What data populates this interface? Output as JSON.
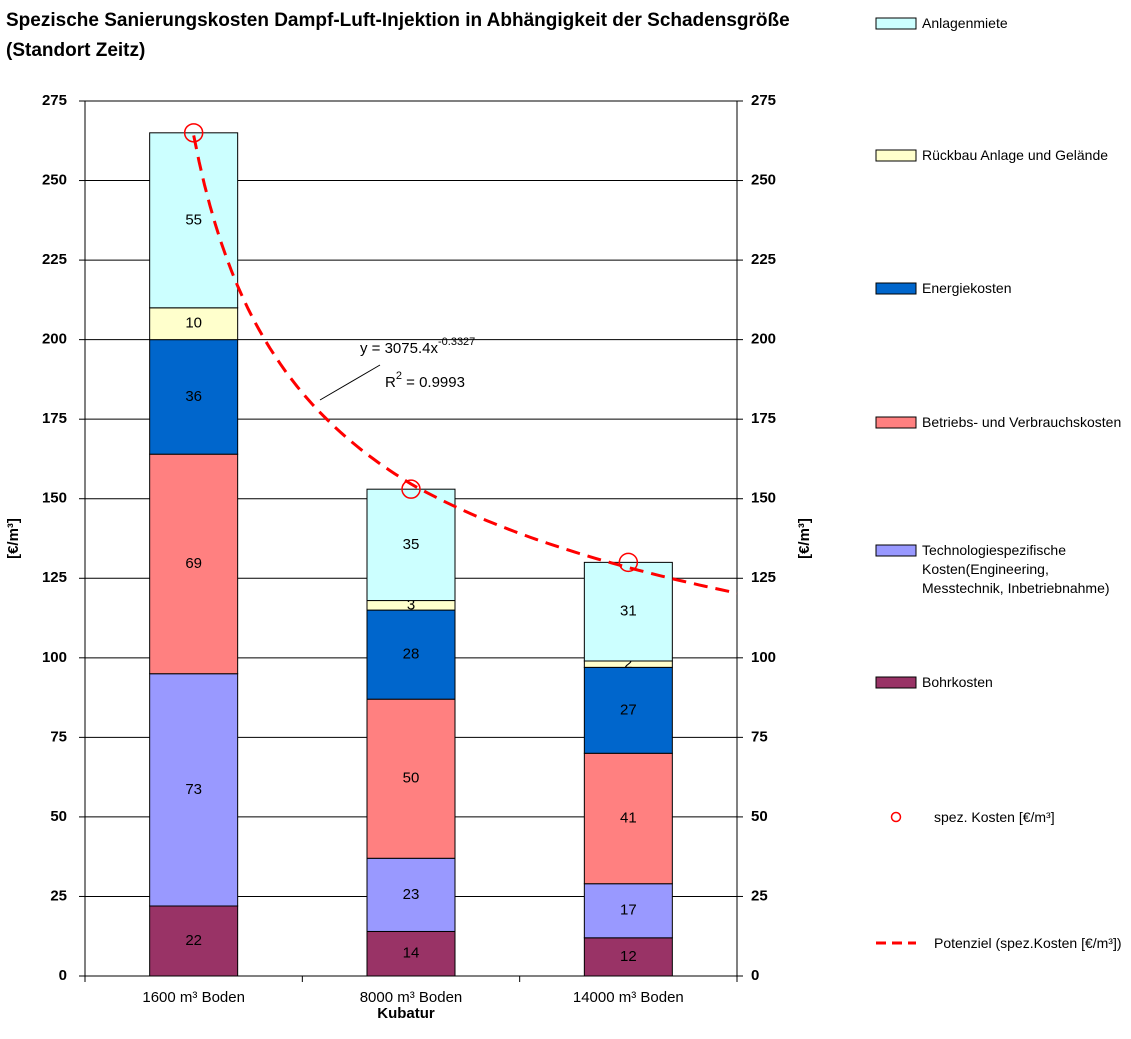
{
  "chart_data": {
    "type": "stacked_bar",
    "title": "Spezische Sanierungskosten Dampf-Luft-Injektion in Abhängigkeit der Schadensgröße (Standort Zeitz)",
    "categories": [
      "1600 m³ Boden",
      "8000 m³ Boden",
      "14000 m³ Boden"
    ],
    "x_label": "Kubatur",
    "y_label": "[€/m³]",
    "y2_label": "[€/m³]",
    "ylim": [
      0,
      275
    ],
    "yticks": [
      0,
      25,
      50,
      75,
      100,
      125,
      150,
      175,
      200,
      225,
      250,
      275
    ],
    "y2lim": [
      0,
      275
    ],
    "y2ticks": [
      0,
      25,
      50,
      75,
      100,
      125,
      150,
      175,
      200,
      225,
      250,
      275
    ],
    "grid": true,
    "legend": "right",
    "series": [
      {
        "name": "Bohrkosten",
        "color": "#993366",
        "values": [
          22,
          14,
          12
        ]
      },
      {
        "name": "Technologiespezifische Kosten(Engineering, Messtechnik, Inbetriebnahme)",
        "color": "#9999ff",
        "values": [
          73,
          23,
          17
        ]
      },
      {
        "name": "Betriebs- und Verbrauchskosten",
        "color": "#ff8080",
        "values": [
          69,
          50,
          41
        ]
      },
      {
        "name": "Energiekosten",
        "color": "#0066cc",
        "values": [
          36,
          28,
          27
        ]
      },
      {
        "name": "Rückbau Anlage und Gelände",
        "color": "#ffffcc",
        "values": [
          10,
          3,
          2
        ]
      },
      {
        "name": "Anlagenmiete",
        "color": "#ccffff",
        "values": [
          55,
          35,
          31
        ]
      }
    ],
    "points": {
      "name": "spez. Kosten [€/m³]",
      "color": "#ff0000",
      "axis": "y2",
      "values": [
        265,
        153,
        130
      ]
    },
    "trendline": {
      "name": "Potenziel (spez.Kosten [€/m³])",
      "color": "#ff0000",
      "coefficient": 3075.4,
      "exponent": -0.3327,
      "x": [
        1600,
        8000,
        14000
      ],
      "equation": "y = 3075.4x",
      "equation_exponent": "-0.3327",
      "r2_label": "R",
      "r2_sup": "2",
      "r2_value": " = 0.9993"
    }
  }
}
